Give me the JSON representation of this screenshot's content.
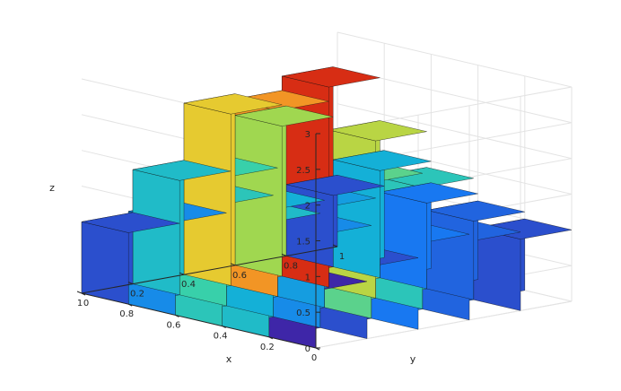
{
  "chart_data": {
    "type": "surface",
    "title": "",
    "xlabel": "x",
    "ylabel": "y",
    "zlabel": "z",
    "xlim": [
      0,
      1
    ],
    "ylim": [
      0,
      1
    ],
    "zlim": [
      0,
      3
    ],
    "x_ticks": [
      "0",
      "0.2",
      "0.4",
      "0.6",
      "0.8",
      "1"
    ],
    "y_ticks": [
      "0",
      "0.2",
      "0.4",
      "0.6",
      "0.8",
      "1"
    ],
    "z_ticks": [
      "0",
      "0.5",
      "1",
      "1.5",
      "2",
      "2.5",
      "3"
    ],
    "grid": true,
    "colormap": "parula",
    "edge_color": "#000000",
    "x": [
      0.1,
      0.3,
      0.5,
      0.7,
      0.9
    ],
    "y": [
      0.1,
      0.3,
      0.5,
      0.7,
      0.9
    ],
    "z": [
      [
        0.8,
        1.0,
        1.2,
        1.1,
        1.0
      ],
      [
        1.6,
        1.3,
        1.9,
        1.7,
        1.1
      ],
      [
        1.7,
        1.5,
        1.4,
        2.2,
        1.2
      ],
      [
        1.3,
        1.8,
        2.6,
        2.8,
        1.5
      ],
      [
        1.0,
        1.6,
        2.4,
        2.1,
        1.0
      ]
    ]
  }
}
